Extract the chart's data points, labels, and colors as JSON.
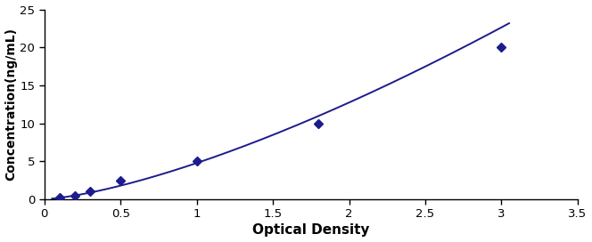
{
  "x_data": [
    0.1,
    0.2,
    0.3,
    0.5,
    1.0,
    1.8,
    3.0
  ],
  "y_data": [
    0.16,
    0.4,
    1.0,
    2.5,
    5.0,
    10.0,
    20.0
  ],
  "line_color": "#1C1C8C",
  "marker_color": "#1C1C8C",
  "marker": "D",
  "marker_size": 5,
  "linewidth": 1.4,
  "xlabel": "Optical Density",
  "ylabel": "Concentration(ng/mL)",
  "xlim": [
    0,
    3.5
  ],
  "ylim": [
    0,
    25
  ],
  "xticks": [
    0,
    0.5,
    1.0,
    1.5,
    2.0,
    2.5,
    3.0,
    3.5
  ],
  "yticks": [
    0,
    5,
    10,
    15,
    20,
    25
  ],
  "xlabel_fontsize": 11,
  "ylabel_fontsize": 10,
  "tick_fontsize": 9.5,
  "background_color": "#ffffff"
}
